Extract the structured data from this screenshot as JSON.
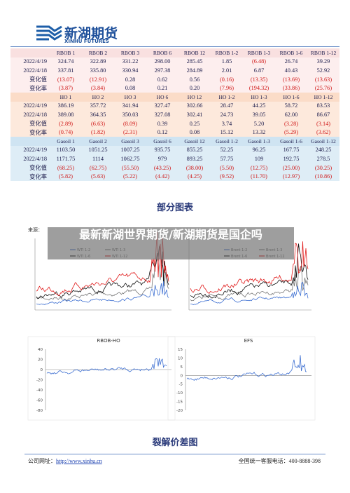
{
  "header": {
    "brand": "新湖期货",
    "brand_en": "XINHU FUTURES"
  },
  "table": {
    "sections": [
      {
        "header": [
          "RBOB 1",
          "RBOB 2",
          "RBOB 3",
          "RBOB 6",
          "RBOB 12",
          "RBOB 1-2",
          "RBOB 1-3",
          "RBOB 1-6",
          "RBOB 1-12"
        ],
        "rows": [
          {
            "label": "2022/4/19",
            "cells": [
              "324.74",
              "322.89",
              "331.22",
              "298.00",
              "285.45",
              "1.85",
              "(6.48)",
              "26.74",
              "39.29"
            ]
          },
          {
            "label": "2022/4/18",
            "cells": [
              "337.81",
              "335.80",
              "330.94",
              "297.38",
              "284.89",
              "2.01",
              "6.87",
              "40.43",
              "52.92"
            ]
          },
          {
            "label": "变化值",
            "cells": [
              "(13.07)",
              "(12.91)",
              "0.28",
              "0.62",
              "0.56",
              "(0.16)",
              "(13.35)",
              "(13.69)",
              "(13.63)"
            ]
          },
          {
            "label": "变化率",
            "cells": [
              "(3.87)",
              "(3.84)",
              "0.08",
              "0.21",
              "0.20",
              "(7.96)",
              "(194.32)",
              "(33.86)",
              "(25.76)"
            ]
          }
        ]
      },
      {
        "header": [
          "HO 1",
          "HO 2",
          "HO 3",
          "HO 6",
          "HO 12",
          "HO 1-2",
          "HO 1-3",
          "HO 1-6",
          "HO 1-12"
        ],
        "rows": [
          {
            "label": "2022/4/19",
            "cells": [
              "386.19",
              "357.72",
              "341.94",
              "327.47",
              "302.66",
              "28.47",
              "44.25",
              "58.72",
              "83.53"
            ]
          },
          {
            "label": "2022/4/18",
            "cells": [
              "389.08",
              "364.35",
              "350.03",
              "327.08",
              "302.41",
              "24.73",
              "39.05",
              "62.00",
              "86.67"
            ]
          },
          {
            "label": "变化值",
            "cells": [
              "(2.89)",
              "(6.63)",
              "(8.09)",
              "0.39",
              "0.25",
              "3.74",
              "5.20",
              "(3.28)",
              "(3.14)"
            ]
          },
          {
            "label": "变化率",
            "cells": [
              "(0.74)",
              "(1.82)",
              "(2.31)",
              "0.12",
              "0.08",
              "15.12",
              "13.32",
              "(5.29)",
              "(3.62)"
            ]
          }
        ]
      },
      {
        "header": [
          "Gasoil 1",
          "Gasoil 2",
          "Gasoil 3",
          "Gasoil 6",
          "Gasoil 12",
          "Gasoil 1-2",
          "Gasoil 1-3",
          "Gasoil 1-6",
          "Gasoil 1-12"
        ],
        "rows": [
          {
            "label": "2022/4/19",
            "cells": [
              "1103.50",
              "1051.25",
              "1007.25",
              "935.75",
              "855.25",
              "52.25",
              "96.25",
              "167.75",
              "248.25"
            ]
          },
          {
            "label": "2022/4/18",
            "cells": [
              "1171.75",
              "1114",
              "1062.75",
              "979",
              "893.25",
              "57.75",
              "109",
              "192.75",
              "278.5"
            ]
          },
          {
            "label": "变化值",
            "cells": [
              "(68.25)",
              "(62.75)",
              "(55.50)",
              "(43.25)",
              "(38.00)",
              "(5.50)",
              "(12.75)",
              "(25.00)",
              "(30.25)"
            ]
          },
          {
            "label": "变化率",
            "cells": [
              "(5.82)",
              "(5.63)",
              "(5.22)",
              "(4.42)",
              "(4.25)",
              "(9.52)",
              "(11.70)",
              "(12.97)",
              "(10.86)"
            ]
          }
        ]
      }
    ]
  },
  "section_title": "部分图表",
  "overlay": "最新新湖世界期货/新湖期货是国企吗",
  "charts": {
    "source": "来源：",
    "top_left_legend": [
      "WTI 1-2",
      "WTI 1-3",
      "WTI 1-6",
      "WTI 1-12"
    ],
    "top_right_legend": [
      "Brent 1-2",
      "Brent 1-3",
      "Brent 1-6",
      "Brent 1-12"
    ],
    "bottom_left": {
      "title": "RBOB-HO",
      "yticks": [
        "40",
        "20",
        "0",
        "-20",
        "-40",
        "-60",
        "-80"
      ]
    },
    "bottom_right": {
      "title": "EFS",
      "yticks": [
        "15",
        "10",
        "5",
        "0",
        "-5",
        "-10",
        "-15",
        "-20"
      ]
    }
  },
  "caption": "裂解价差图",
  "footer": {
    "site_label": "公司网址：",
    "site_url": "http://www.xinhu.cn",
    "hotline": "全国统一客服电话：400-8888-398"
  }
}
